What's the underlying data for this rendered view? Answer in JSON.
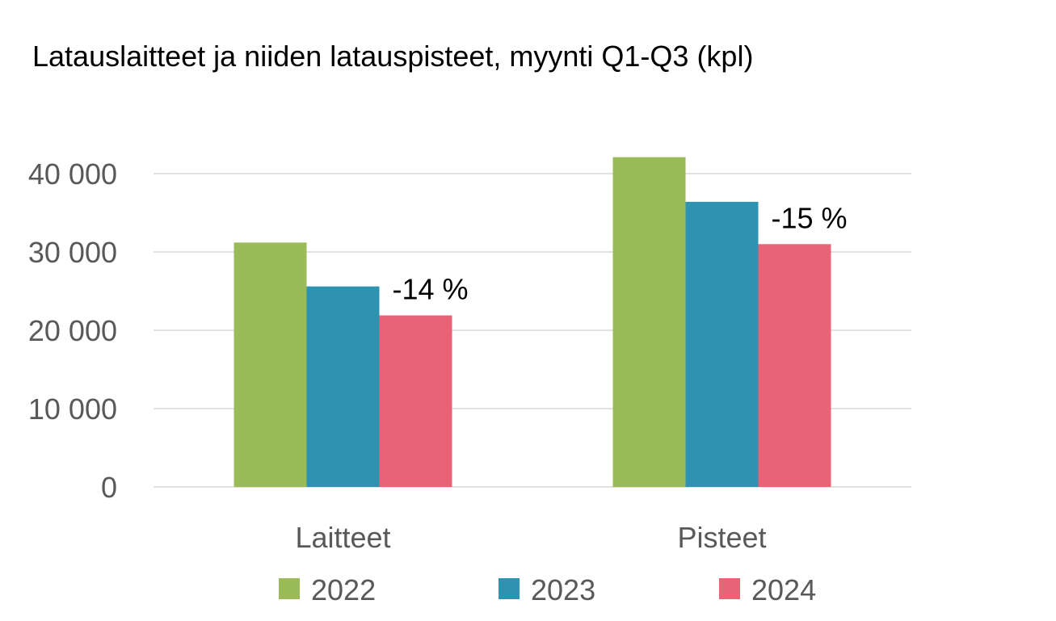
{
  "chart_data": {
    "type": "bar",
    "title": "Latauslaitteet ja niiden latauspisteet, myynti Q1-Q3 (kpl)",
    "xlabel": "",
    "ylabel": "",
    "categories": [
      "Laitteet",
      "Pisteet"
    ],
    "series": [
      {
        "name": "2022",
        "color": "#9bbb59",
        "values": [
          31200,
          42100
        ]
      },
      {
        "name": "2023",
        "color": "#2e93b0",
        "values": [
          25600,
          36400
        ]
      },
      {
        "name": "2024",
        "color": "#e86375",
        "values": [
          21900,
          31000
        ]
      }
    ],
    "ylim": [
      0,
      40000
    ],
    "yticks": [
      0,
      10000,
      20000,
      30000,
      40000
    ],
    "ytick_labels": [
      "0",
      "10 000",
      "20 000",
      "30 000",
      "40 000"
    ],
    "grid": true,
    "legend_position": "bottom",
    "annotations": [
      {
        "category": "Laitteet",
        "series": "2024",
        "text": "-14 %"
      },
      {
        "category": "Pisteet",
        "series": "2024",
        "text": "-15 %"
      }
    ]
  }
}
